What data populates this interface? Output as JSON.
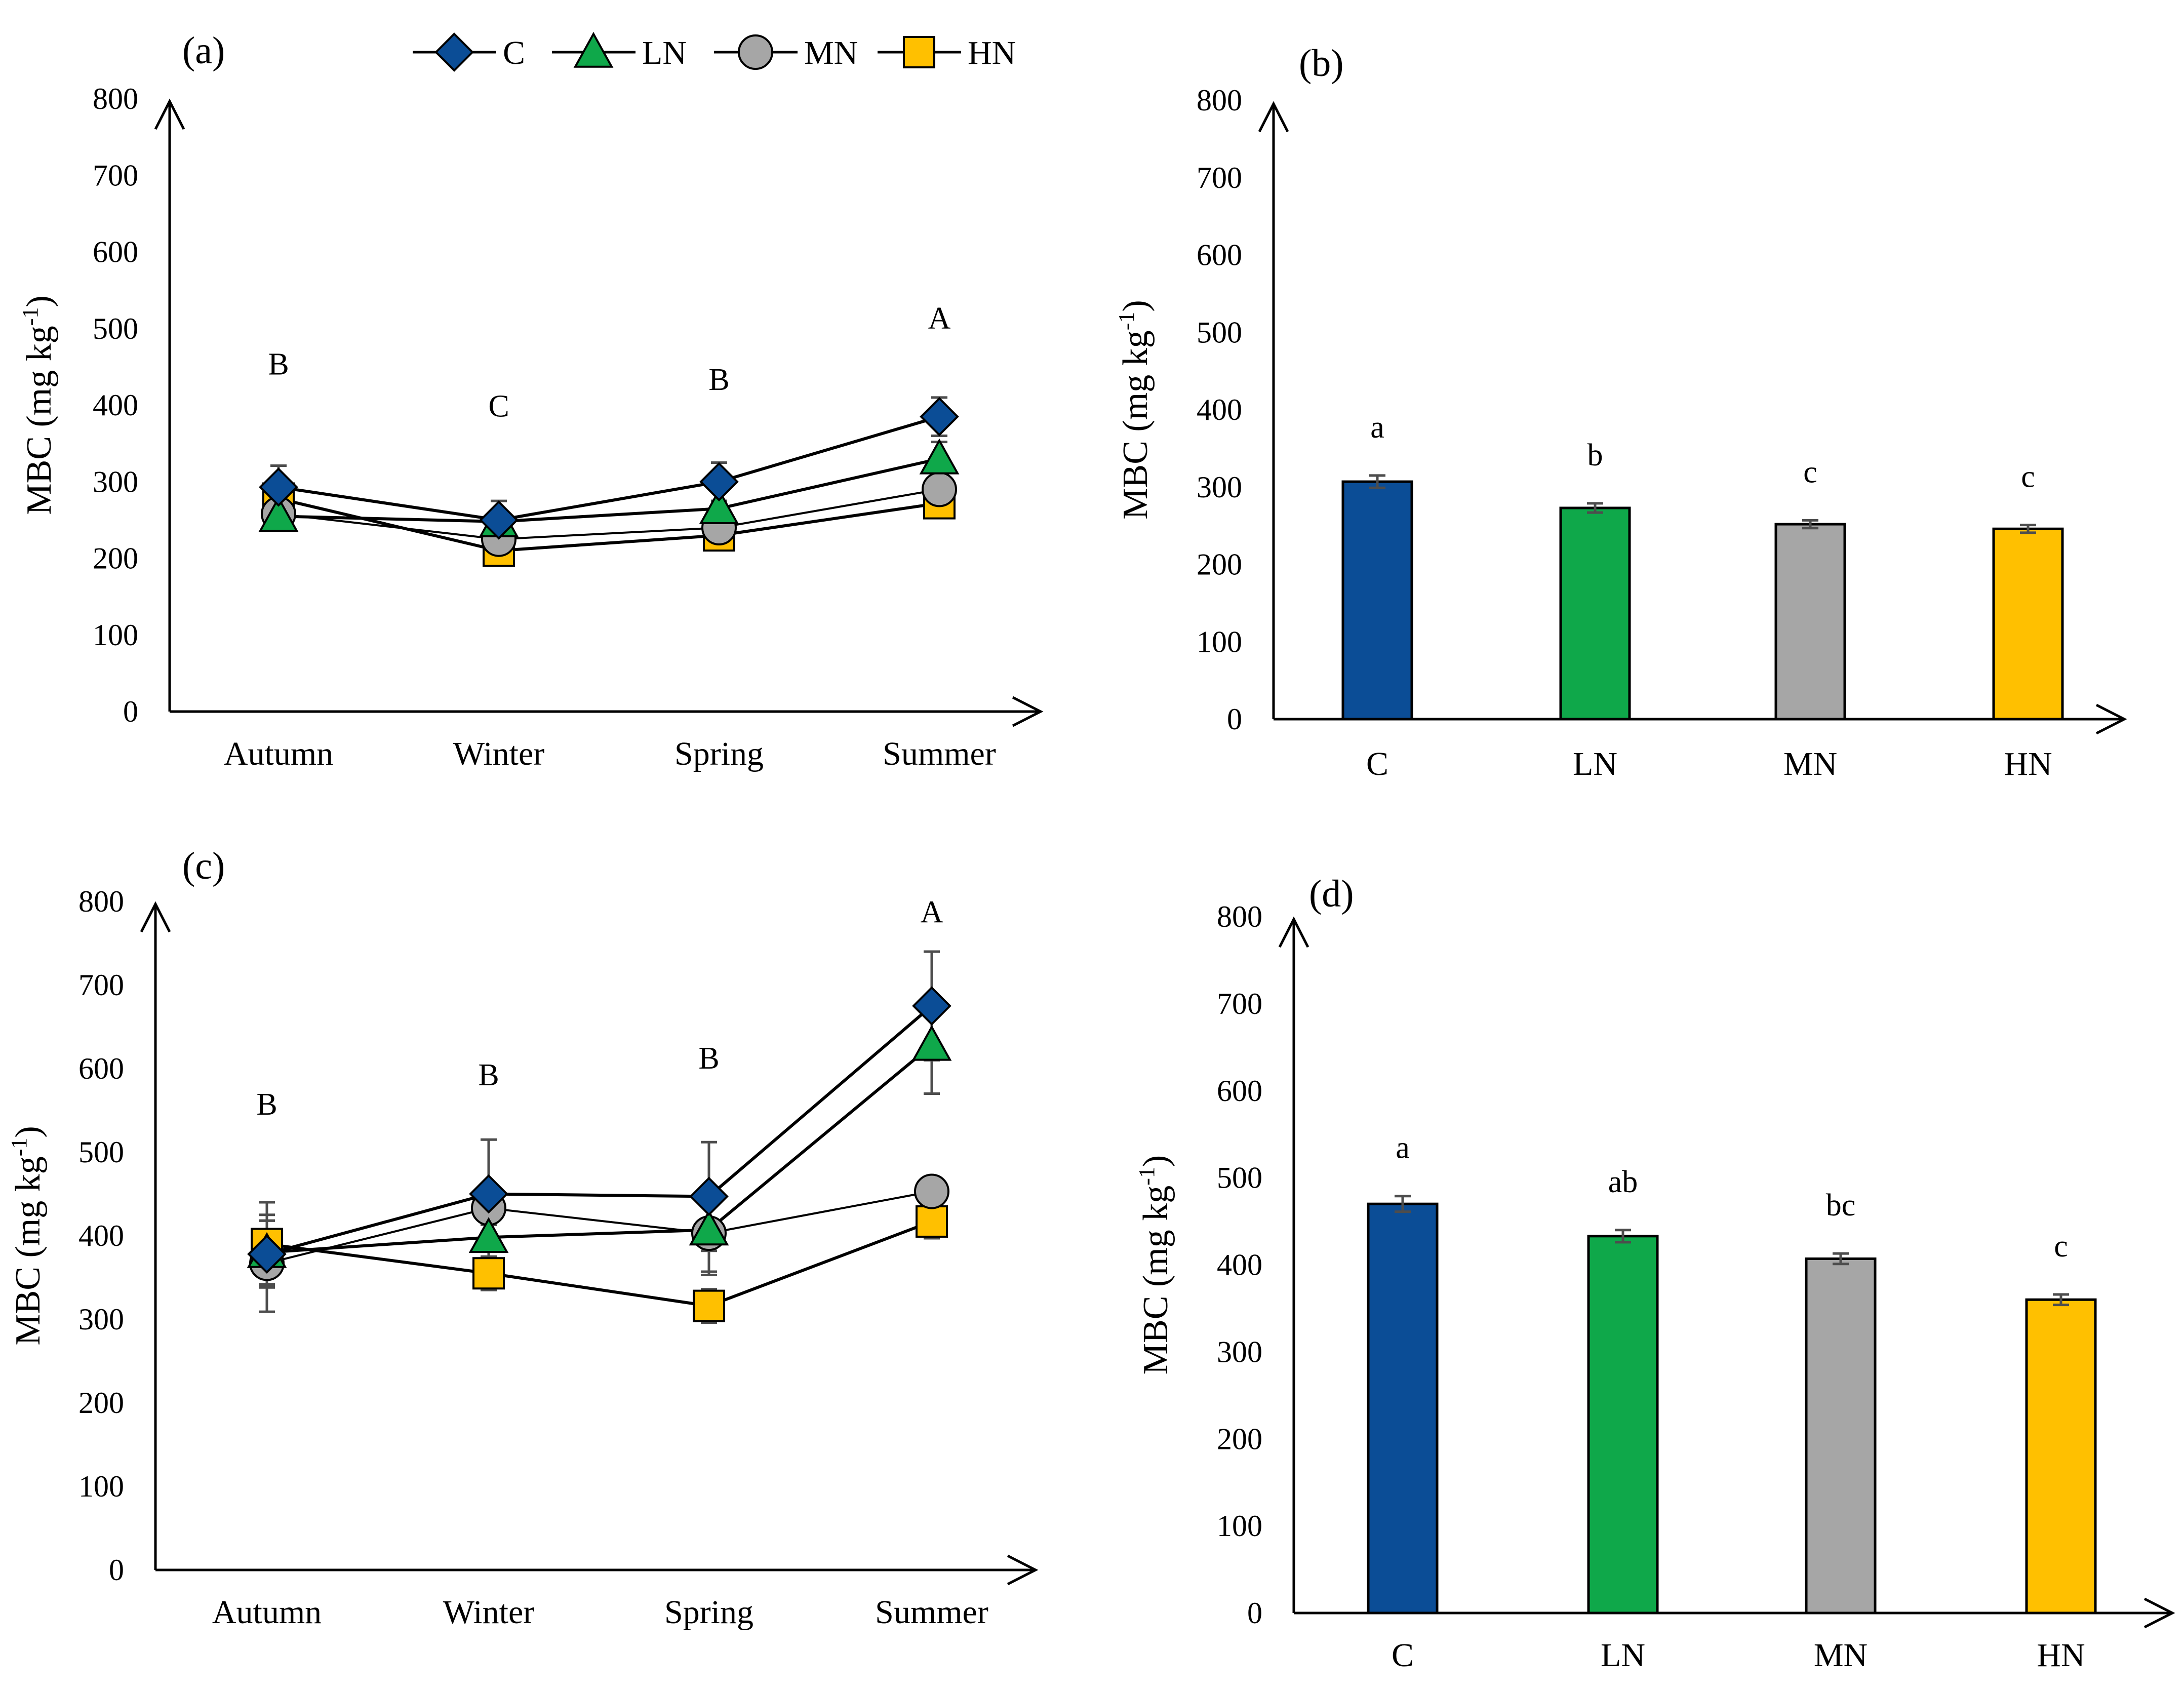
{
  "colors": {
    "C": "#0b4d96",
    "LN": "#0fa84a",
    "MN": "#a6a6a6",
    "HN": "#ffc000",
    "axis": "#000000",
    "errorbar": "#4d4d4d"
  },
  "legend": [
    {
      "key": "C",
      "label": "C",
      "marker": "diamond"
    },
    {
      "key": "LN",
      "label": "LN",
      "marker": "triangle"
    },
    {
      "key": "MN",
      "label": "MN",
      "marker": "circle"
    },
    {
      "key": "HN",
      "label": "HN",
      "marker": "square"
    }
  ],
  "chart_data": [
    {
      "id": "a",
      "panel_label": "(a)",
      "type": "line",
      "ylabel": "MBC (mg kg",
      "ylabel_sup": "-1",
      "ylabel_end": ")",
      "ylim": [
        0,
        800
      ],
      "yticks": [
        "0",
        "100",
        "200",
        "300",
        "400",
        "500",
        "600",
        "700",
        "800"
      ],
      "categories": [
        "Autumn",
        "Winter",
        "Spring",
        "Summer"
      ],
      "sig_letters": [
        "B",
        "C",
        "B",
        "A"
      ],
      "sig_heights": [
        440,
        385,
        420,
        500
      ],
      "series": [
        {
          "name": "C",
          "values": [
            293,
            250,
            300,
            385
          ],
          "errors": [
            28,
            25,
            25,
            25
          ]
        },
        {
          "name": "LN",
          "values": [
            255,
            248,
            265,
            330
          ],
          "errors": [
            10,
            12,
            10,
            22
          ]
        },
        {
          "name": "MN",
          "values": [
            258,
            225,
            240,
            290
          ],
          "errors": [
            8,
            10,
            8,
            10
          ]
        },
        {
          "name": "HN",
          "values": [
            278,
            210,
            230,
            272
          ],
          "errors": [
            10,
            10,
            8,
            8
          ]
        }
      ]
    },
    {
      "id": "b",
      "panel_label": "(b)",
      "type": "bar",
      "ylabel": "MBC (mg kg",
      "ylabel_sup": "-1",
      "ylabel_end": ")",
      "ylim": [
        0,
        800
      ],
      "yticks": [
        "0",
        "100",
        "200",
        "300",
        "400",
        "500",
        "600",
        "700",
        "800"
      ],
      "categories": [
        "C",
        "LN",
        "MN",
        "HN"
      ],
      "values": [
        307,
        273,
        252,
        246
      ],
      "errors": [
        8,
        6,
        5,
        5
      ],
      "sig_letters": [
        "a",
        "b",
        "c",
        "c"
      ]
    },
    {
      "id": "c",
      "panel_label": "(c)",
      "type": "line",
      "ylabel": "MBC (mg kg",
      "ylabel_sup": "-1",
      "ylabel_end": ")",
      "ylim": [
        0,
        800
      ],
      "yticks": [
        "0",
        "100",
        "200",
        "300",
        "400",
        "500",
        "600",
        "700",
        "800"
      ],
      "categories": [
        "Autumn",
        "Winter",
        "Spring",
        "Summer"
      ],
      "sig_letters": [
        "B",
        "B",
        "B",
        "A"
      ],
      "sig_heights": [
        545,
        580,
        600,
        775
      ],
      "series": [
        {
          "name": "C",
          "values": [
            378,
            450,
            447,
            675
          ],
          "errors": [
            40,
            65,
            65,
            65
          ]
        },
        {
          "name": "LN",
          "values": [
            380,
            398,
            407,
            628
          ],
          "errors": [
            38,
            30,
            50,
            58
          ]
        },
        {
          "name": "MN",
          "values": [
            367,
            433,
            403,
            453
          ],
          "errors": [
            58,
            20,
            50,
            10
          ]
        },
        {
          "name": "HN",
          "values": [
            390,
            355,
            316,
            417
          ],
          "errors": [
            50,
            20,
            20,
            20
          ]
        }
      ]
    },
    {
      "id": "d",
      "panel_label": "(d)",
      "type": "bar",
      "ylabel": "MBC (mg kg",
      "ylabel_sup": "-1",
      "ylabel_end": ")",
      "ylim": [
        0,
        800
      ],
      "yticks": [
        "0",
        "100",
        "200",
        "300",
        "400",
        "500",
        "600",
        "700",
        "800"
      ],
      "categories": [
        "C",
        "LN",
        "MN",
        "HN"
      ],
      "values": [
        470,
        433,
        407,
        360
      ],
      "errors": [
        9,
        7,
        6,
        6
      ],
      "sig_letters": [
        "a",
        "ab",
        "bc",
        "c"
      ]
    }
  ]
}
